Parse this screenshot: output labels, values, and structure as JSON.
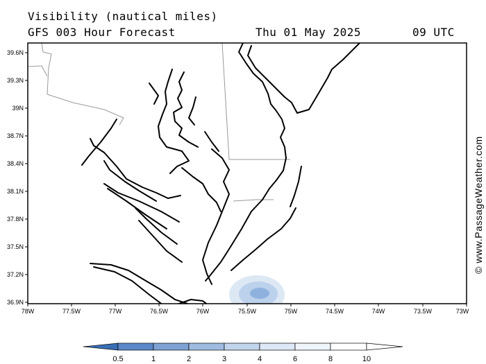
{
  "header": {
    "title_line1": "Visibility (nautical miles)",
    "title_line2": "GFS 003 Hour Forecast",
    "date": "Thu 01 May 2025",
    "time": "09 UTC"
  },
  "credit": "© www.PassageWeather.com",
  "map": {
    "lat_labels": [
      "39.6N",
      "39.3N",
      "39N",
      "38.7N",
      "38.4N",
      "38.1N",
      "37.8N",
      "37.5N",
      "37.2N",
      "36.9N"
    ],
    "lon_labels": [
      "78W",
      "77.5W",
      "77W",
      "76.5W",
      "76W",
      "75.5W",
      "75W",
      "74.5W",
      "74W",
      "73.5W",
      "73W"
    ],
    "colors": {
      "coast": "#000000",
      "border": "#999999",
      "fog_outer": "#dde8f5",
      "fog_mid": "#bcd1ec",
      "fog_inner": "#8fb1de"
    }
  },
  "colorbar": {
    "labels": [
      "0.5",
      "1",
      "2",
      "3",
      "4",
      "6",
      "8",
      "10"
    ],
    "colors": [
      "#3a6eb5",
      "#5b88c8",
      "#7fa2d4",
      "#a0bbe0",
      "#c2d4ec",
      "#dde7f5",
      "#f0f4fb",
      "#ffffff"
    ]
  }
}
